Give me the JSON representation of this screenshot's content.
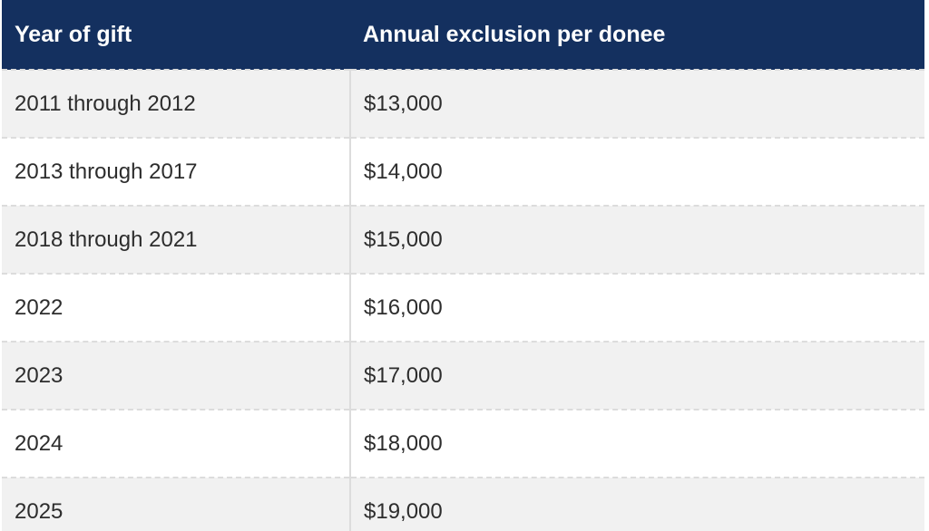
{
  "table": {
    "columns": [
      {
        "label": "Year of gift"
      },
      {
        "label": "Annual exclusion per donee"
      }
    ],
    "rows": [
      {
        "year": "2011 through 2012",
        "amount": "$13,000"
      },
      {
        "year": "2013 through 2017",
        "amount": "$14,000"
      },
      {
        "year": "2018 through 2021",
        "amount": "$15,000"
      },
      {
        "year": "2022",
        "amount": "$16,000"
      },
      {
        "year": "2023",
        "amount": "$17,000"
      },
      {
        "year": "2024",
        "amount": "$18,000"
      },
      {
        "year": "2025",
        "amount": "$19,000"
      }
    ]
  },
  "chart_data": {
    "type": "table",
    "title": "",
    "columns": [
      "Year of gift",
      "Annual exclusion per donee"
    ],
    "rows": [
      [
        "2011 through 2012",
        "$13,000"
      ],
      [
        "2013 through 2017",
        "$14,000"
      ],
      [
        "2018 through 2021",
        "$15,000"
      ],
      [
        "2022",
        "$16,000"
      ],
      [
        "2023",
        "$17,000"
      ],
      [
        "2024",
        "$18,000"
      ],
      [
        "2025",
        "$19,000"
      ]
    ],
    "numeric_values": [
      13000,
      14000,
      15000,
      16000,
      17000,
      18000,
      19000
    ]
  },
  "colors": {
    "header_bg": "#14305f",
    "header_text": "#ffffff",
    "row_alt_bg": "#f1f1f1",
    "row_bg": "#ffffff",
    "border": "#dcdcdc",
    "body_text": "#2d2d2d"
  }
}
